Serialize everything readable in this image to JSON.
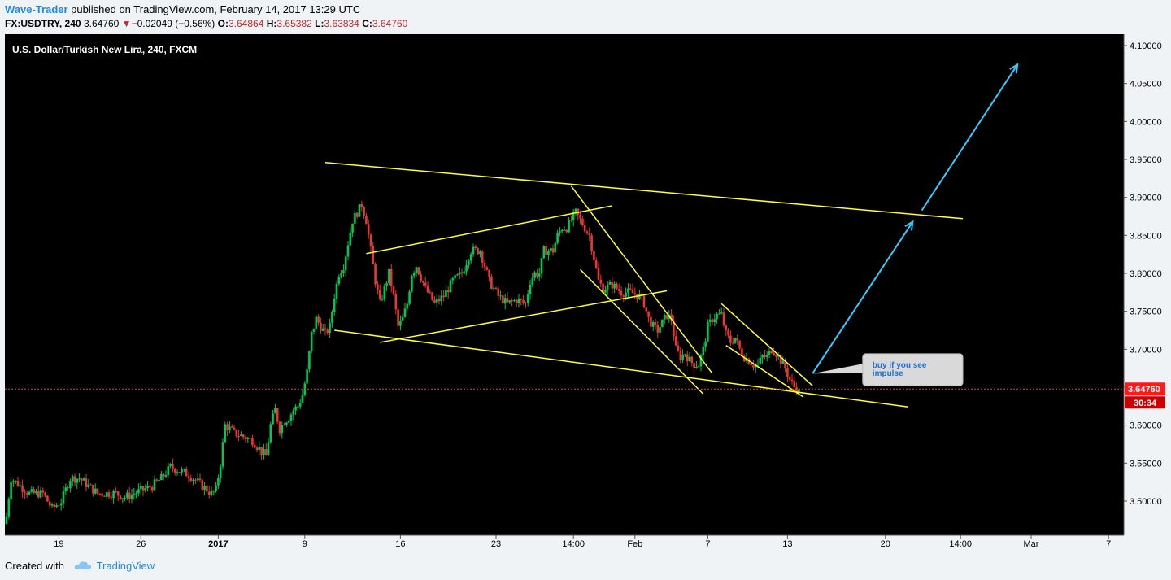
{
  "header": {
    "author": "Wave-Trader",
    "published_text": " published on TradingView.com, February 14, 2017 13:29 UTC",
    "symbol": "FX:USDTRY, 240",
    "last": "3.64760",
    "change": "−0.02049 (−0.56%)",
    "o_label": "O:",
    "o_value": "3.64864",
    "h_label": "H:",
    "h_value": "3.65382",
    "l_label": "L:",
    "l_value": "3.63834",
    "c_label": "C:",
    "c_value": "3.64760"
  },
  "footer": {
    "created_with": "Created with",
    "brand": "TradingView"
  },
  "colors": {
    "up": "#00c853",
    "down": "#e53935",
    "trendline": "#ffff33",
    "arrow": "#33ccff",
    "price_tag": "#ff1a1a",
    "background": "#000000"
  },
  "chart_data": {
    "type": "candlestick",
    "title": "U.S. Dollar/Turkish New Lira, 240, FXCM",
    "y_ticks": [
      "4.10000",
      "4.05000",
      "4.00000",
      "3.95000",
      "3.90000",
      "3.85000",
      "3.80000",
      "3.75000",
      "3.70000",
      "3.65000",
      "3.60000",
      "3.55000",
      "3.50000"
    ],
    "y_tick_values": [
      4.1,
      4.05,
      4.0,
      3.95,
      3.9,
      3.85,
      3.8,
      3.75,
      3.7,
      3.65,
      3.6,
      3.55,
      3.5
    ],
    "ylim": [
      3.455,
      4.115
    ],
    "x_ticks": [
      {
        "label": "19",
        "t": 11.5,
        "bold": false
      },
      {
        "label": "26",
        "t": 29.5,
        "bold": false
      },
      {
        "label": "2017",
        "t": 46.5,
        "bold": true
      },
      {
        "label": "9",
        "t": 65.5,
        "bold": false
      },
      {
        "label": "16",
        "t": 86.5,
        "bold": false
      },
      {
        "label": "23",
        "t": 107.5,
        "bold": false
      },
      {
        "label": "14:00",
        "t": 124.5,
        "bold": false
      },
      {
        "label": "Feb",
        "t": 138,
        "bold": false
      },
      {
        "label": "7",
        "t": 154,
        "bold": false
      },
      {
        "label": "13",
        "t": 171.5,
        "bold": false
      },
      {
        "label": "20",
        "t": 193,
        "bold": false
      },
      {
        "label": "14:00",
        "t": 209.5,
        "bold": false
      },
      {
        "label": "Mar",
        "t": 225,
        "bold": false
      },
      {
        "label": "7",
        "t": 242,
        "bold": false
      }
    ],
    "xlim": [
      0,
      245
    ],
    "current_price_label": "3.64760",
    "current_price": 3.6476,
    "countdown_label": "30:34",
    "close_path": [
      [
        0,
        3.48
      ],
      [
        1,
        3.53
      ],
      [
        3,
        3.52
      ],
      [
        5,
        3.51
      ],
      [
        8,
        3.51
      ],
      [
        10,
        3.49
      ],
      [
        12,
        3.5
      ],
      [
        14,
        3.53
      ],
      [
        16,
        3.53
      ],
      [
        18,
        3.52
      ],
      [
        20,
        3.51
      ],
      [
        22,
        3.51
      ],
      [
        24,
        3.51
      ],
      [
        26,
        3.505
      ],
      [
        28,
        3.51
      ],
      [
        30,
        3.515
      ],
      [
        32,
        3.52
      ],
      [
        34,
        3.53
      ],
      [
        36,
        3.545
      ],
      [
        38,
        3.54
      ],
      [
        40,
        3.535
      ],
      [
        42,
        3.525
      ],
      [
        44,
        3.515
      ],
      [
        45,
        3.51
      ],
      [
        46,
        3.515
      ],
      [
        47,
        3.55
      ],
      [
        48,
        3.6
      ],
      [
        50,
        3.59
      ],
      [
        52,
        3.585
      ],
      [
        54,
        3.58
      ],
      [
        56,
        3.565
      ],
      [
        57,
        3.56
      ],
      [
        58,
        3.6
      ],
      [
        59,
        3.62
      ],
      [
        60,
        3.595
      ],
      [
        61,
        3.605
      ],
      [
        62,
        3.61
      ],
      [
        63,
        3.62
      ],
      [
        64,
        3.625
      ],
      [
        65,
        3.64
      ],
      [
        66,
        3.67
      ],
      [
        67,
        3.72
      ],
      [
        68,
        3.74
      ],
      [
        69,
        3.73
      ],
      [
        70,
        3.72
      ],
      [
        71,
        3.73
      ],
      [
        72,
        3.77
      ],
      [
        73,
        3.8
      ],
      [
        74,
        3.81
      ],
      [
        75,
        3.84
      ],
      [
        76,
        3.87
      ],
      [
        77,
        3.88
      ],
      [
        78,
        3.89
      ],
      [
        79,
        3.87
      ],
      [
        80,
        3.83
      ],
      [
        81,
        3.79
      ],
      [
        82,
        3.76
      ],
      [
        83,
        3.78
      ],
      [
        84,
        3.8
      ],
      [
        85,
        3.77
      ],
      [
        86,
        3.73
      ],
      [
        87,
        3.74
      ],
      [
        88,
        3.76
      ],
      [
        89,
        3.8
      ],
      [
        90,
        3.81
      ],
      [
        92,
        3.78
      ],
      [
        94,
        3.76
      ],
      [
        96,
        3.77
      ],
      [
        98,
        3.79
      ],
      [
        100,
        3.8
      ],
      [
        102,
        3.83
      ],
      [
        104,
        3.83
      ],
      [
        106,
        3.79
      ],
      [
        108,
        3.77
      ],
      [
        110,
        3.76
      ],
      [
        112,
        3.765
      ],
      [
        114,
        3.76
      ],
      [
        115,
        3.79
      ],
      [
        116,
        3.8
      ],
      [
        117,
        3.8
      ],
      [
        118,
        3.83
      ],
      [
        120,
        3.83
      ],
      [
        121,
        3.85
      ],
      [
        122,
        3.86
      ],
      [
        123,
        3.86
      ],
      [
        124,
        3.87
      ],
      [
        125,
        3.88
      ],
      [
        126,
        3.87
      ],
      [
        127,
        3.86
      ],
      [
        128,
        3.85
      ],
      [
        129,
        3.82
      ],
      [
        130,
        3.79
      ],
      [
        131,
        3.78
      ],
      [
        133,
        3.785
      ],
      [
        135,
        3.775
      ],
      [
        137,
        3.775
      ],
      [
        139,
        3.77
      ],
      [
        140,
        3.76
      ],
      [
        141,
        3.74
      ],
      [
        142,
        3.73
      ],
      [
        143,
        3.725
      ],
      [
        144,
        3.735
      ],
      [
        145,
        3.745
      ],
      [
        146,
        3.74
      ],
      [
        147,
        3.7
      ],
      [
        148,
        3.69
      ],
      [
        149,
        3.695
      ],
      [
        150,
        3.685
      ],
      [
        151,
        3.68
      ],
      [
        152,
        3.68
      ],
      [
        153,
        3.7
      ],
      [
        154,
        3.73
      ],
      [
        155,
        3.74
      ],
      [
        156,
        3.745
      ],
      [
        157,
        3.745
      ],
      [
        158,
        3.72
      ],
      [
        159,
        3.71
      ],
      [
        160,
        3.715
      ],
      [
        161,
        3.7
      ],
      [
        162,
        3.69
      ],
      [
        163,
        3.685
      ],
      [
        164,
        3.68
      ],
      [
        165,
        3.68
      ],
      [
        166,
        3.69
      ],
      [
        167,
        3.69
      ],
      [
        168,
        3.7
      ],
      [
        169,
        3.695
      ],
      [
        170,
        3.685
      ],
      [
        171,
        3.675
      ],
      [
        172,
        3.66
      ],
      [
        173,
        3.65
      ],
      [
        174,
        3.6476
      ]
    ],
    "trendlines": [
      {
        "from": [
          70,
          3.946
        ],
        "to": [
          210,
          3.872
        ]
      },
      {
        "from": [
          72,
          3.725
        ],
        "to": [
          198,
          3.624
        ]
      },
      {
        "from": [
          79,
          3.826
        ],
        "to": [
          133,
          3.889
        ]
      },
      {
        "from": [
          82,
          3.709
        ],
        "to": [
          145,
          3.777
        ]
      },
      {
        "from": [
          124,
          3.915
        ],
        "to": [
          155,
          3.668
        ]
      },
      {
        "from": [
          126,
          3.805
        ],
        "to": [
          153,
          3.641
        ]
      },
      {
        "from": [
          157,
          3.76
        ],
        "to": [
          177,
          3.652
        ]
      },
      {
        "from": [
          158,
          3.705
        ],
        "to": [
          175,
          3.637
        ]
      }
    ],
    "arrows": [
      {
        "from": [
          177,
          3.668
        ],
        "to": [
          199,
          3.868
        ]
      },
      {
        "from": [
          201,
          3.883
        ],
        "to": [
          222,
          4.075
        ]
      }
    ],
    "callout": {
      "text_line1": "buy if you see",
      "text_line2": "impulse",
      "anchor": [
        177,
        3.668
      ],
      "box_from": [
        188,
        3.694
      ],
      "box_to": [
        210,
        3.652
      ]
    }
  }
}
